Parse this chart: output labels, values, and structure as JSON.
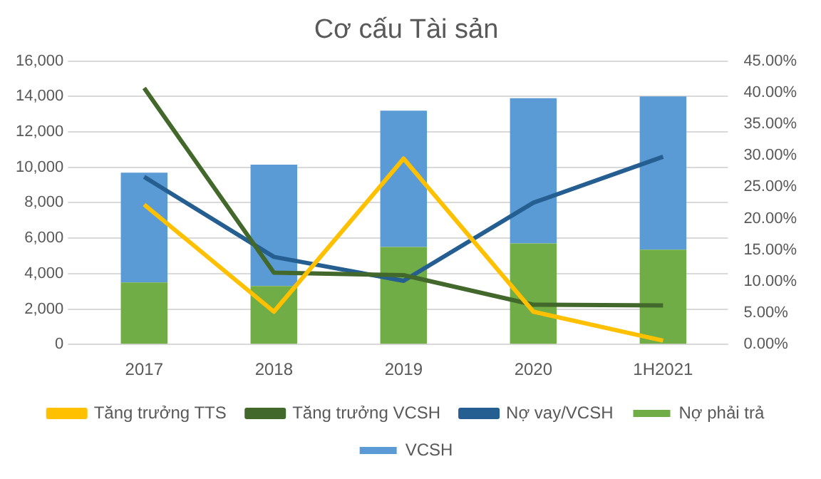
{
  "chart_data": {
    "type": "bar",
    "title": "Cơ cấu Tài sản",
    "stacked": true,
    "categories": [
      "2017",
      "2018",
      "2019",
      "2020",
      "1H2021"
    ],
    "series": [
      {
        "name": "Nợ phải trả",
        "color": "#70ad47",
        "values": [
          3500,
          3300,
          5500,
          5700,
          5350
        ]
      },
      {
        "name": "VCSH",
        "color": "#5b9bd5",
        "values": [
          6200,
          6850,
          7700,
          8200,
          8650
        ]
      },
      {
        "name": "Tăng trưởng TTS",
        "type": "line",
        "axis": "y2",
        "color": "#ffc000",
        "values": [
          22.2,
          5.2,
          29.5,
          5.2,
          0.6
        ]
      },
      {
        "name": "Tăng trưởng VCSH",
        "type": "line",
        "axis": "y2",
        "color": "#43682b",
        "values": [
          40.7,
          11.4,
          11.0,
          6.3,
          6.2
        ]
      },
      {
        "name": "Nợ vay/VCSH",
        "type": "line",
        "axis": "y2",
        "color": "#255e91",
        "values": [
          26.6,
          13.9,
          10.1,
          22.5,
          29.8
        ]
      }
    ],
    "ylim": [
      0,
      16000
    ],
    "yticks": [
      {
        "value": 0,
        "label": "0"
      },
      {
        "value": 2000,
        "label": "2,000"
      },
      {
        "value": 4000,
        "label": "4,000"
      },
      {
        "value": 6000,
        "label": "6,000"
      },
      {
        "value": 8000,
        "label": "8,000"
      },
      {
        "value": 10000,
        "label": "10,000"
      },
      {
        "value": 12000,
        "label": "12,000"
      },
      {
        "value": 14000,
        "label": "14,000"
      },
      {
        "value": 16000,
        "label": "16,000"
      }
    ],
    "y2lim": [
      0,
      45
    ],
    "y2ticks": [
      {
        "value": 0,
        "label": "0.00%"
      },
      {
        "value": 5,
        "label": "5.00%"
      },
      {
        "value": 10,
        "label": "10.00%"
      },
      {
        "value": 15,
        "label": "15.00%"
      },
      {
        "value": 20,
        "label": "20.00%"
      },
      {
        "value": 25,
        "label": "25.00%"
      },
      {
        "value": 30,
        "label": "30.00%"
      },
      {
        "value": 35,
        "label": "35.00%"
      },
      {
        "value": 40,
        "label": "40.00%"
      },
      {
        "value": 45,
        "label": "45.00%"
      }
    ],
    "grid": "y",
    "legend": "bottom",
    "marker": "none"
  }
}
